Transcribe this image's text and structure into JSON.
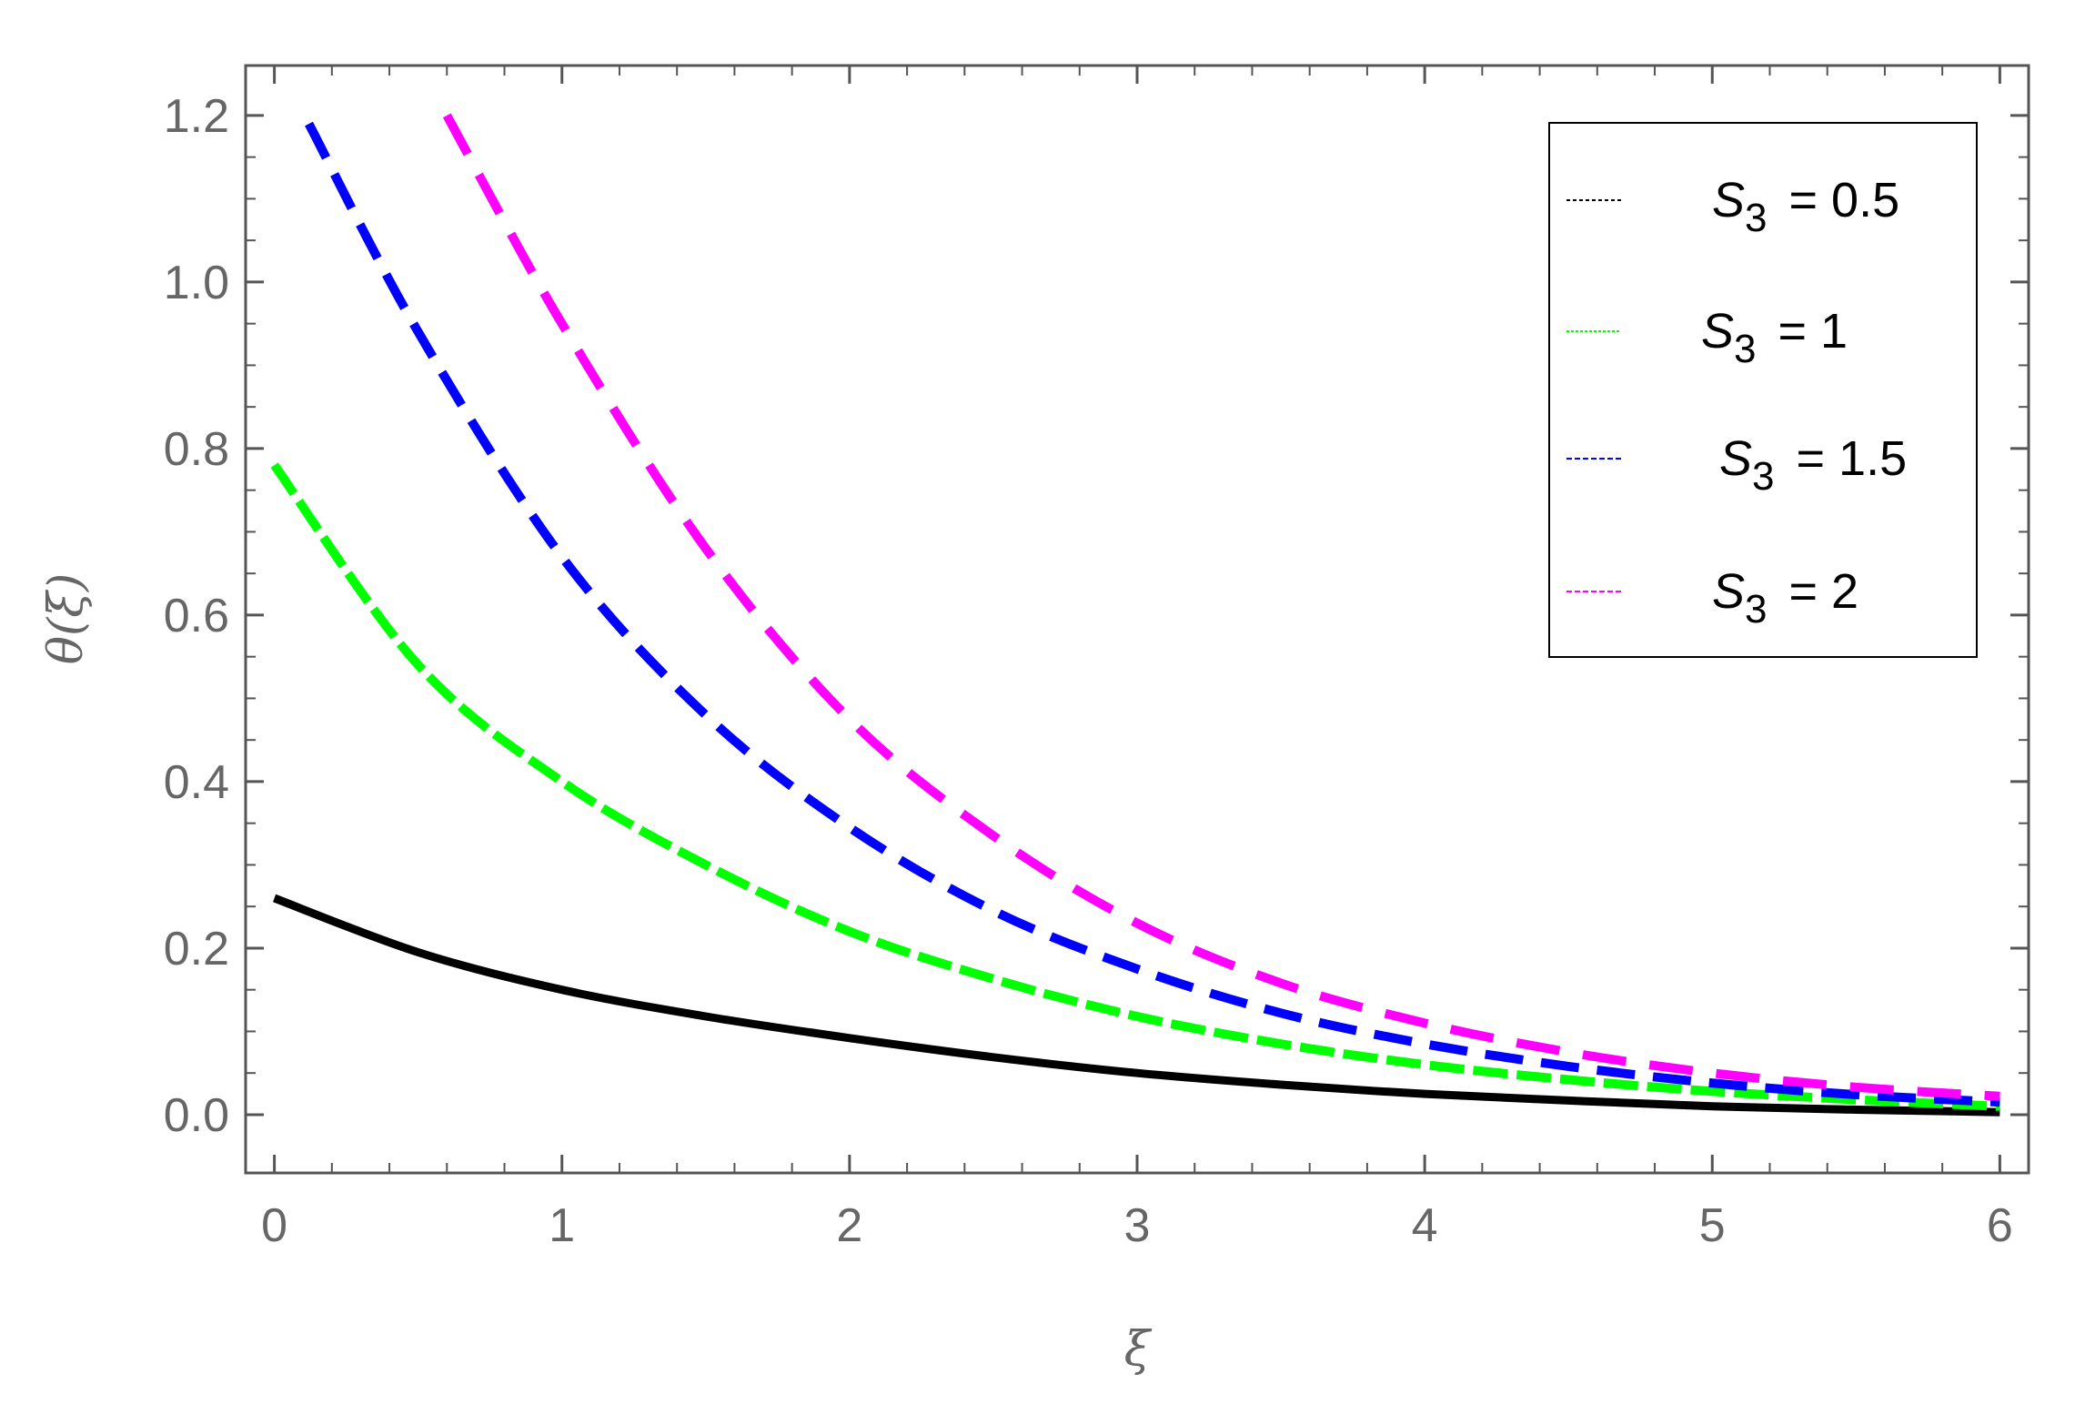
{
  "chart_data": {
    "type": "line",
    "title": "",
    "xlabel": "ξ",
    "ylabel": "θ(ξ)",
    "xlim": [
      -0.1,
      6.1
    ],
    "ylim": [
      -0.07,
      1.26
    ],
    "grid": false,
    "legend_position": "top-right",
    "x_ticks": [
      0,
      1,
      2,
      3,
      4,
      5,
      6
    ],
    "x_tick_labels": [
      "0",
      "1",
      "2",
      "3",
      "4",
      "5",
      "6"
    ],
    "y_ticks": [
      0.0,
      0.2,
      0.4,
      0.6,
      0.8,
      1.0,
      1.2
    ],
    "y_tick_labels": [
      "0.0",
      "0.2",
      "0.4",
      "0.6",
      "0.8",
      "1.0",
      "1.2"
    ],
    "series": [
      {
        "name": "S3 = 0.5",
        "legend_symbol": "S",
        "legend_sub": "3",
        "legend_rest": "= 0.5",
        "color": "#000000",
        "style": "solid",
        "x": [
          0,
          0.5,
          1,
          1.5,
          2,
          2.5,
          3,
          3.5,
          4,
          4.5,
          5,
          5.5,
          6
        ],
        "y": [
          0.26,
          0.195,
          0.15,
          0.118,
          0.092,
          0.069,
          0.05,
          0.036,
          0.025,
          0.017,
          0.01,
          0.006,
          0.003
        ]
      },
      {
        "name": "S3 = 1",
        "legend_symbol": "S",
        "legend_sub": "3",
        "legend_rest": "= 1",
        "color": "#00ff00",
        "style": "dashed",
        "x": [
          0,
          0.5,
          1,
          1.5,
          2,
          2.5,
          3,
          3.5,
          4,
          4.5,
          5,
          5.5,
          6
        ],
        "y": [
          0.78,
          0.54,
          0.4,
          0.3,
          0.22,
          0.163,
          0.118,
          0.085,
          0.06,
          0.042,
          0.028,
          0.018,
          0.01
        ]
      },
      {
        "name": "S3 = 1.5",
        "legend_symbol": "S",
        "legend_sub": "3",
        "legend_rest": "= 1.5",
        "color": "#0000ff",
        "style": "dashed",
        "x": [
          0.12,
          0.5,
          1,
          1.5,
          2,
          2.5,
          3,
          3.5,
          4,
          4.5,
          5,
          5.5,
          6
        ],
        "y": [
          1.19,
          0.94,
          0.67,
          0.48,
          0.345,
          0.245,
          0.175,
          0.122,
          0.085,
          0.058,
          0.038,
          0.024,
          0.015
        ]
      },
      {
        "name": "S3 = 2",
        "legend_symbol": "S",
        "legend_sub": "3",
        "legend_rest": "= 2",
        "color": "#ff00ff",
        "style": "dashed",
        "x": [
          0.6,
          1,
          1.5,
          2,
          2.5,
          3,
          3.5,
          4,
          4.5,
          5,
          5.5,
          6
        ],
        "y": [
          1.2,
          0.95,
          0.68,
          0.475,
          0.335,
          0.23,
          0.158,
          0.11,
          0.075,
          0.05,
          0.033,
          0.022
        ]
      }
    ]
  }
}
